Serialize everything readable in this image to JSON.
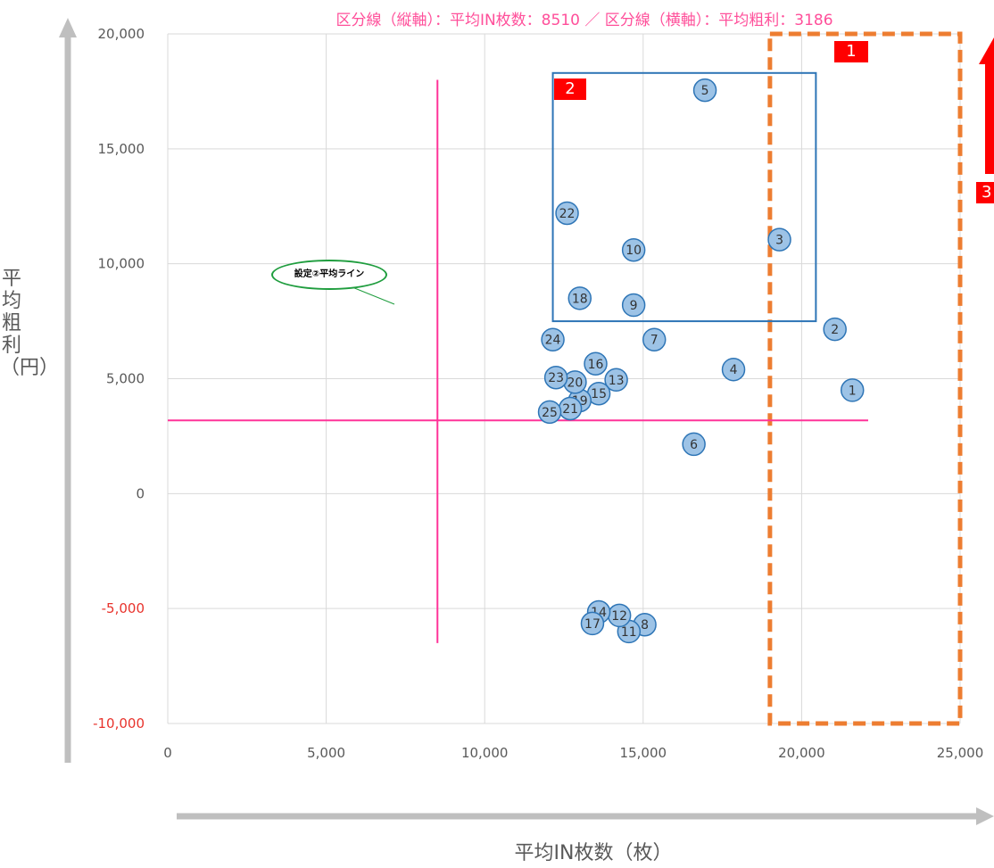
{
  "header_text": "区分線（縦軸）：平均IN枚数：8510 ／ 区分線（横軸）：平均粗利：3186",
  "chart_data": {
    "type": "scatter",
    "xlabel": "平均IN枚数（枚）",
    "ylabel": "平均粗利（円）",
    "xlim": [
      0,
      25000
    ],
    "ylim": [
      -10000,
      20000
    ],
    "x_ticks": [
      {
        "value": 0,
        "label": "0"
      },
      {
        "value": 5000,
        "label": "5,000"
      },
      {
        "value": 10000,
        "label": "10,000"
      },
      {
        "value": 15000,
        "label": "15,000"
      },
      {
        "value": 20000,
        "label": "20,000"
      },
      {
        "value": 25000,
        "label": "25,000"
      }
    ],
    "y_ticks": [
      {
        "value": 20000,
        "label": "20,000"
      },
      {
        "value": 15000,
        "label": "15,000"
      },
      {
        "value": 10000,
        "label": "10,000"
      },
      {
        "value": 5000,
        "label": "5,000"
      },
      {
        "value": 0,
        "label": "0"
      },
      {
        "value": -5000,
        "label": "-5,000"
      },
      {
        "value": -10000,
        "label": "-10,000"
      }
    ],
    "grid": true,
    "points": [
      {
        "label": "1",
        "x": 21600,
        "y": 4500
      },
      {
        "label": "2",
        "x": 21050,
        "y": 7150
      },
      {
        "label": "3",
        "x": 19300,
        "y": 11050
      },
      {
        "label": "4",
        "x": 17850,
        "y": 5400
      },
      {
        "label": "5",
        "x": 16950,
        "y": 17550
      },
      {
        "label": "6",
        "x": 16600,
        "y": 2150
      },
      {
        "label": "7",
        "x": 15350,
        "y": 6700
      },
      {
        "label": "8",
        "x": 15050,
        "y": -5700
      },
      {
        "label": "9",
        "x": 14700,
        "y": 8200
      },
      {
        "label": "10",
        "x": 14700,
        "y": 10600
      },
      {
        "label": "11",
        "x": 14550,
        "y": -6000
      },
      {
        "label": "12",
        "x": 14250,
        "y": -5300
      },
      {
        "label": "13",
        "x": 14150,
        "y": 4950
      },
      {
        "label": "14",
        "x": 13600,
        "y": -5150
      },
      {
        "label": "15",
        "x": 13600,
        "y": 4350
      },
      {
        "label": "16",
        "x": 13500,
        "y": 5650
      },
      {
        "label": "17",
        "x": 13400,
        "y": -5650
      },
      {
        "label": "18",
        "x": 13000,
        "y": 8500
      },
      {
        "label": "19",
        "x": 13000,
        "y": 4050
      },
      {
        "label": "20",
        "x": 12850,
        "y": 4850
      },
      {
        "label": "21",
        "x": 12700,
        "y": 3700
      },
      {
        "label": "22",
        "x": 12600,
        "y": 12200
      },
      {
        "label": "23",
        "x": 12250,
        "y": 5050
      },
      {
        "label": "24",
        "x": 12150,
        "y": 6700
      },
      {
        "label": "25",
        "x": 12050,
        "y": 3550
      }
    ],
    "divider_lines": {
      "vertical_x": 8510,
      "vertical_range": [
        -6500,
        18000
      ],
      "horizontal_y": 3186,
      "horizontal_range": [
        0,
        22100
      ]
    },
    "regions": [
      {
        "label": "1",
        "style": "dashed-orange",
        "x": [
          19000,
          25000
        ],
        "y": [
          -10000,
          20000
        ]
      },
      {
        "label": "2",
        "style": "solid-blue",
        "x": [
          12150,
          20450
        ],
        "y": [
          7500,
          18300
        ]
      }
    ]
  },
  "annotations": {
    "callout_text": "設定②平均ライン",
    "badge3_text": "3"
  },
  "colors": {
    "point_fill": "#9dc3e6",
    "point_stroke": "#2e75b6",
    "divider": "#ff3399",
    "grid": "#d9d9d9",
    "region1": "#ed7d31",
    "region2": "#2e75b6",
    "badge": "#ff0000",
    "axis_arrow": "#bfbfbf"
  }
}
